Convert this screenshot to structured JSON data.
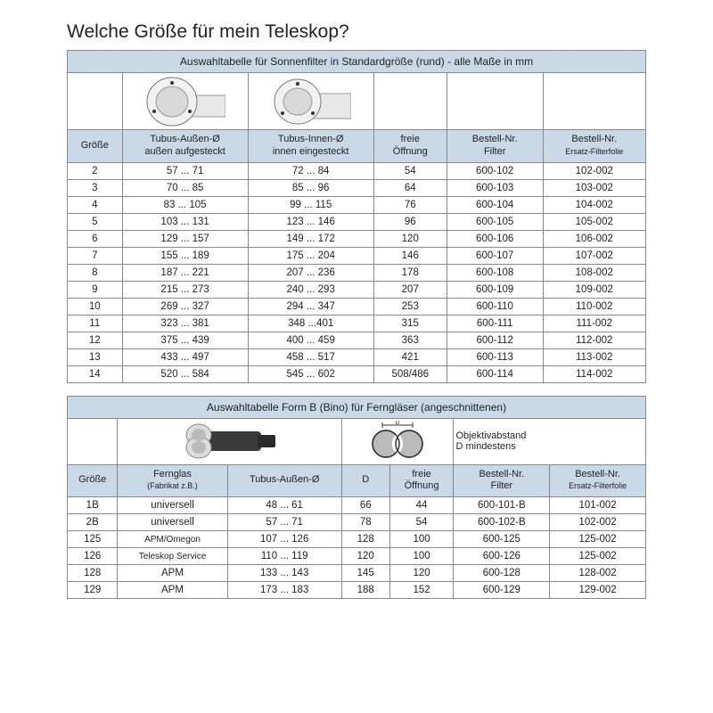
{
  "page": {
    "title": "Welche Größe für mein Teleskop?"
  },
  "table1": {
    "caption": "Auswahltabelle für Sonnenfilter in Standardgröße (rund) - alle Maße in mm",
    "headers": {
      "size": "Größe",
      "outer": "Tubus-Außen-Ø\naußen aufgesteckt",
      "inner": "Tubus-Innen-Ø\ninnen eingesteckt",
      "free": "freie\nÖffnung",
      "order_filter": "Bestell-Nr.\nFilter",
      "order_foil": "Bestell-Nr.",
      "order_foil_sub": "Ersatz-Filterfolie"
    },
    "rows": [
      {
        "size": "2",
        "outer": "57 ... 71",
        "inner": "72 ... 84",
        "free": "54",
        "filter": "600-102",
        "foil": "102-002"
      },
      {
        "size": "3",
        "outer": "70 ... 85",
        "inner": "85 ... 96",
        "free": "64",
        "filter": "600-103",
        "foil": "103-002"
      },
      {
        "size": "4",
        "outer": "83 ... 105",
        "inner": "99 ... 115",
        "free": "76",
        "filter": "600-104",
        "foil": "104-002"
      },
      {
        "size": "5",
        "outer": "103 ... 131",
        "inner": "123 ... 146",
        "free": "96",
        "filter": "600-105",
        "foil": "105-002"
      },
      {
        "size": "6",
        "outer": "129 ... 157",
        "inner": "149 ... 172",
        "free": "120",
        "filter": "600-106",
        "foil": "106-002"
      },
      {
        "size": "7",
        "outer": "155 ... 189",
        "inner": "175 ... 204",
        "free": "146",
        "filter": "600-107",
        "foil": "107-002"
      },
      {
        "size": "8",
        "outer": "187 ... 221",
        "inner": "207 ... 236",
        "free": "178",
        "filter": "600-108",
        "foil": "108-002"
      },
      {
        "size": "9",
        "outer": "215 ... 273",
        "inner": "240 ... 293",
        "free": "207",
        "filter": "600-109",
        "foil": "109-002"
      },
      {
        "size": "10",
        "outer": "269 ... 327",
        "inner": "294 ... 347",
        "free": "253",
        "filter": "600-110",
        "foil": "110-002"
      },
      {
        "size": "11",
        "outer": "323 ... 381",
        "inner": "348 ...401",
        "free": "315",
        "filter": "600-111",
        "foil": "111-002"
      },
      {
        "size": "12",
        "outer": "375 ... 439",
        "inner": "400 ... 459",
        "free": "363",
        "filter": "600-112",
        "foil": "112-002"
      },
      {
        "size": "13",
        "outer": "433 ... 497",
        "inner": "458 ... 517",
        "free": "421",
        "filter": "600-113",
        "foil": "113-002"
      },
      {
        "size": "14",
        "outer": "520 ... 584",
        "inner": "545 ... 602",
        "free": "508/486",
        "filter": "600-114",
        "foil": "114-002"
      }
    ],
    "col_widths": [
      "48",
      "110",
      "110",
      "64",
      "84",
      "90"
    ]
  },
  "table2": {
    "caption": "Auswahltabelle Form B (Bino) für Ferngläser  (angeschnittenen)",
    "headers": {
      "size": "Größe",
      "model": "Fernglas",
      "model_sub": "(Fabrikat z.B.)",
      "outer": "Tubus-Außen-Ø",
      "d": "D",
      "free": "freie\nÖffnung",
      "order_filter": "Bestell-Nr.\nFilter",
      "order_foil": "Bestell-Nr.",
      "order_foil_sub": "Ersatz-Filterfolie"
    },
    "diag_label": "Objektivabstand\nD mindestens",
    "rows": [
      {
        "size": "1B",
        "model": "universell",
        "outer": "48 ... 61",
        "d": "66",
        "free": "44",
        "filter": "600-101-B",
        "foil": "101-002"
      },
      {
        "size": "2B",
        "model": "universell",
        "outer": "57 ... 71",
        "d": "78",
        "free": "54",
        "filter": "600-102-B",
        "foil": "102-002"
      },
      {
        "size": "125",
        "model": "APM/Omegon",
        "outer": "107 ... 126",
        "d": "128",
        "free": "100",
        "filter": "600-125",
        "foil": "125-002"
      },
      {
        "size": "126",
        "model": "Teleskop Service",
        "outer": "110 ... 119",
        "d": "120",
        "free": "100",
        "filter": "600-126",
        "foil": "125-002"
      },
      {
        "size": "128",
        "model": "APM",
        "outer": "133 ... 143",
        "d": "145",
        "free": "120",
        "filter": "600-128",
        "foil": "128-002"
      },
      {
        "size": "129",
        "model": "APM",
        "outer": "173 ... 183",
        "d": "188",
        "free": "152",
        "filter": "600-129",
        "foil": "129-002"
      }
    ],
    "col_widths": [
      "44",
      "96",
      "100",
      "42",
      "56",
      "84",
      "84"
    ]
  },
  "colors": {
    "header_bg": "#c9d9e8",
    "border": "#888888",
    "text": "#222222"
  }
}
